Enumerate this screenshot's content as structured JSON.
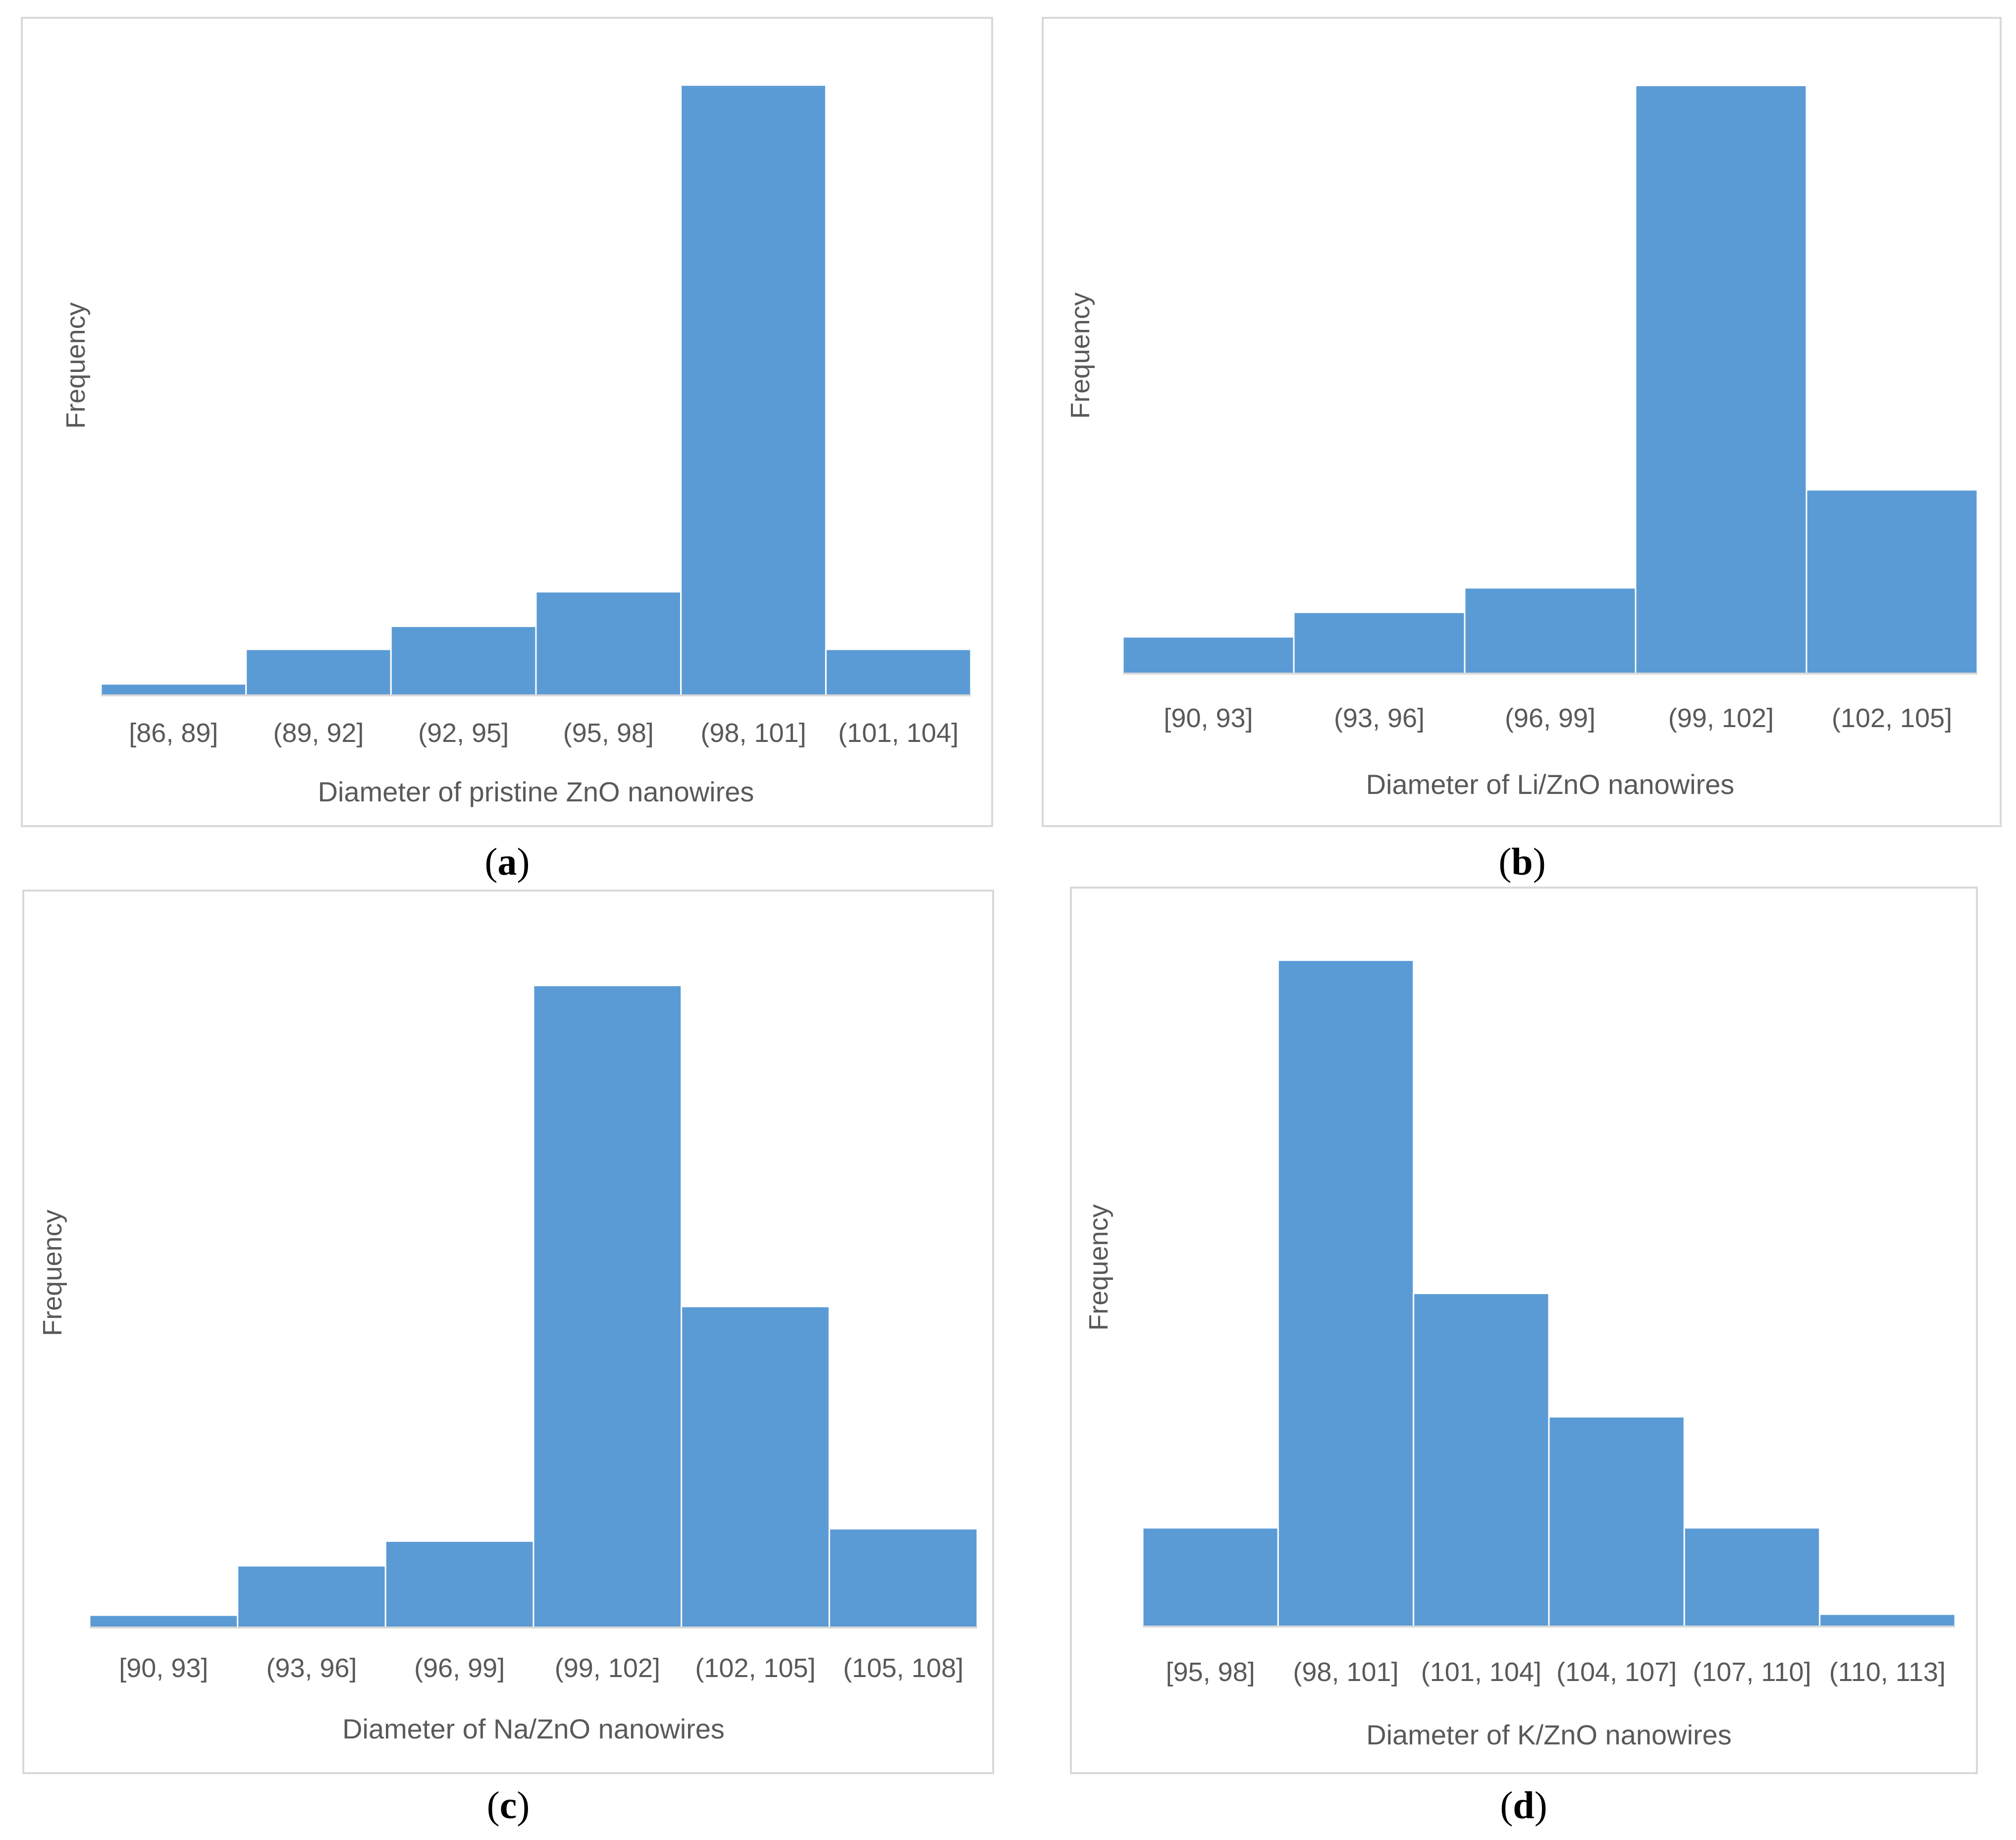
{
  "chart_data": [
    {
      "type": "bar",
      "panel": "a",
      "title": "",
      "xlabel": "Diameter of pristine ZnO nanowires",
      "ylabel": "Frequency",
      "categories": [
        "[86, 89]",
        "(89, 92]",
        "(92, 95]",
        "(95, 98]",
        "(98, 101]",
        "(101, 104]"
      ],
      "values": [
        1,
        4,
        6,
        9,
        53,
        4
      ],
      "ylim": [
        0,
        56
      ],
      "color": "#5b9bd5",
      "grid": false
    },
    {
      "type": "bar",
      "panel": "b",
      "title": "",
      "xlabel": "Diameter of Li/ZnO nanowires",
      "ylabel": "Frequency",
      "categories": [
        "[90, 93]",
        "(93, 96]",
        "(96, 99]",
        "(99, 102]",
        "(102, 105]"
      ],
      "values": [
        3,
        5,
        7,
        48,
        15
      ],
      "ylim": [
        0,
        50
      ],
      "color": "#5b9bd5",
      "grid": false
    },
    {
      "type": "bar",
      "panel": "c",
      "title": "",
      "xlabel": "Diameter of Na/ZnO nanowires",
      "ylabel": "Frequency",
      "categories": [
        "[90, 93]",
        "(93, 96]",
        "(96, 99]",
        "(99, 102]",
        "(102, 105]",
        "(105, 108]"
      ],
      "values": [
        1,
        5,
        7,
        52,
        26,
        8
      ],
      "ylim": [
        0,
        57
      ],
      "color": "#5b9bd5",
      "grid": false
    },
    {
      "type": "bar",
      "panel": "d",
      "title": "",
      "xlabel": "Diameter of K/ZnO nanowires",
      "ylabel": "Frequency",
      "categories": [
        "[95, 98]",
        "(98, 101]",
        "(101, 104]",
        "(104, 107]",
        "(107, 110]",
        "(110, 113]"
      ],
      "values": [
        8,
        54,
        27,
        17,
        8,
        1
      ],
      "ylim": [
        0,
        58
      ],
      "color": "#5b9bd5",
      "grid": false
    }
  ],
  "captions": {
    "a": "a",
    "b": "b",
    "c": "c",
    "d": "d"
  }
}
